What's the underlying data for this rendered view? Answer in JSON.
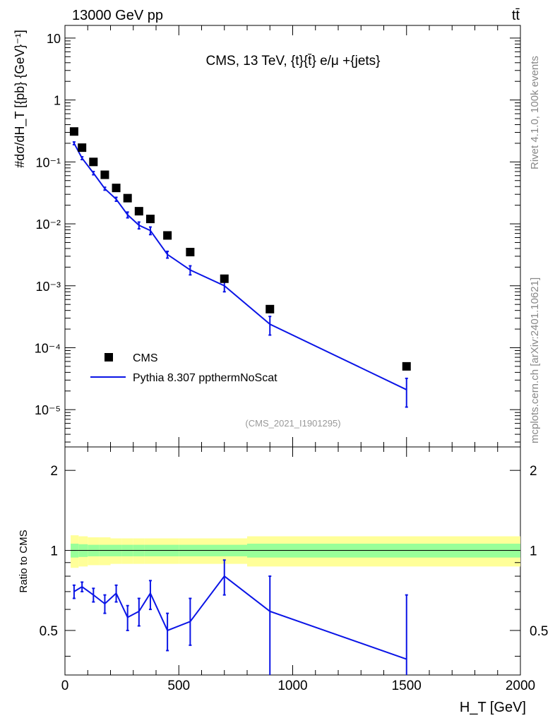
{
  "header": {
    "left_label": "13000 GeV pp",
    "right_label": "tt̄",
    "side_label_top": "Rivet 4.1.0,  100k events",
    "side_label_bottom": "mcplots.cern.ch [arXiv:2401.10621]"
  },
  "chart_data": [
    {
      "type": "scatter",
      "panel": "main",
      "title": "CMS, 13 TeV, {t}{t̄} e/μ +{jets}",
      "watermark": "(CMS_2021_I1901295)",
      "xlabel": "H_T [GeV]",
      "ylabel": "#dσ/dH_T [{pb} {GeV}⁻¹]",
      "xlim": [
        0,
        2000
      ],
      "ylim": [
        2.5e-06,
        16
      ],
      "yscale": "log",
      "y_tick_labels": [
        "10⁻⁵",
        "10⁻⁴",
        "10⁻³",
        "10⁻²",
        "10⁻¹",
        "1",
        "10"
      ],
      "legend": [
        "CMS",
        "Pythia 8.307 ppthermNoScat"
      ],
      "legend_position": "bottom-left",
      "series": [
        {
          "name": "CMS",
          "style": "markers",
          "color": "#000000",
          "x": [
            40,
            75,
            125,
            175,
            225,
            275,
            325,
            375,
            450,
            550,
            700,
            900,
            1500
          ],
          "y": [
            0.31,
            0.17,
            0.1,
            0.062,
            0.038,
            0.026,
            0.016,
            0.012,
            0.0065,
            0.0035,
            0.0013,
            0.00042,
            5e-05
          ]
        },
        {
          "name": "Pythia 8.307 ppthermNoScat",
          "style": "line",
          "color": "#0a14e6",
          "x": [
            40,
            75,
            125,
            175,
            225,
            275,
            325,
            375,
            450,
            550,
            700,
            900,
            1500
          ],
          "y": [
            0.2,
            0.115,
            0.066,
            0.037,
            0.025,
            0.014,
            0.0095,
            0.0078,
            0.0032,
            0.0018,
            0.001,
            0.00024,
            2.1e-05
          ],
          "y_err_low": [
            0.01,
            0.006,
            0.004,
            0.002,
            0.0018,
            0.0015,
            0.0012,
            0.0011,
            0.0004,
            0.0003,
            0.0002,
            8e-05,
            1e-05
          ],
          "y_err_high": [
            0.01,
            0.006,
            0.004,
            0.002,
            0.0018,
            0.0015,
            0.0012,
            0.0011,
            0.0004,
            0.0003,
            0.0002,
            8e-05,
            1.1e-05
          ]
        }
      ]
    },
    {
      "type": "line",
      "panel": "ratio",
      "xlabel": "H_T [GeV]",
      "ylabel": "Ratio to CMS",
      "xlim": [
        0,
        2000
      ],
      "ylim": [
        0.34,
        2.45
      ],
      "yscale": "log",
      "x_ticks": [
        0,
        500,
        1000,
        1500,
        2000
      ],
      "x_tick_labels": [
        "0",
        "500",
        "1000",
        "1500",
        "2000"
      ],
      "y_ticks": [
        0.5,
        1,
        2
      ],
      "y_tick_labels": [
        "0.5",
        "1",
        "2"
      ],
      "reference_line": 1,
      "bands": {
        "bin_edges": [
          25,
          60,
          100,
          150,
          200,
          250,
          300,
          350,
          400,
          500,
          600,
          800,
          1000,
          2000
        ],
        "stat_syst_outer": [
          0.14,
          0.13,
          0.12,
          0.12,
          0.11,
          0.11,
          0.11,
          0.11,
          0.11,
          0.11,
          0.11,
          0.13,
          0.13
        ],
        "stat_inner": [
          0.06,
          0.055,
          0.05,
          0.05,
          0.05,
          0.05,
          0.05,
          0.05,
          0.05,
          0.05,
          0.05,
          0.06,
          0.06
        ],
        "outer_color": "#ffff99",
        "inner_color": "#99ff99"
      },
      "series": [
        {
          "name": "Pythia 8.307 ppthermNoScat",
          "color": "#0a14e6",
          "x": [
            40,
            75,
            125,
            175,
            225,
            275,
            325,
            375,
            450,
            550,
            700,
            900,
            1500
          ],
          "y": [
            0.7,
            0.73,
            0.68,
            0.63,
            0.69,
            0.56,
            0.59,
            0.69,
            0.5,
            0.54,
            0.8,
            0.59,
            0.39
          ],
          "y_err_low": [
            0.04,
            0.03,
            0.04,
            0.05,
            0.05,
            0.06,
            0.07,
            0.09,
            0.08,
            0.1,
            0.12,
            0.25,
            0.1
          ],
          "y_err_high": [
            0.04,
            0.03,
            0.04,
            0.05,
            0.05,
            0.06,
            0.07,
            0.08,
            0.08,
            0.12,
            0.12,
            0.21,
            0.29
          ]
        }
      ]
    }
  ]
}
